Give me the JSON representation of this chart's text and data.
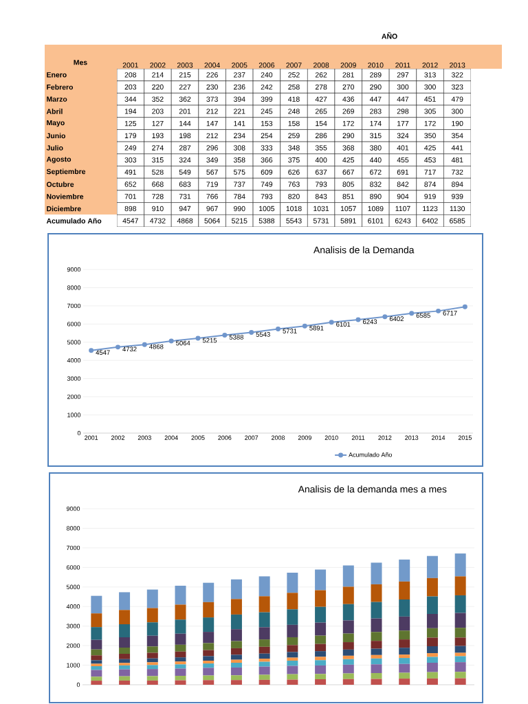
{
  "chart_data": [
    {
      "type": "heatmap",
      "title": "AÑO",
      "ylabel": "Mes",
      "data_labels": true,
      "categories": [
        "2001",
        "2002",
        "2003",
        "2004",
        "2005",
        "2006",
        "2007",
        "2008",
        "2009",
        "2010",
        "2011",
        "2012",
        "2013"
      ],
      "y_categories": [
        "Enero",
        "Febrero",
        "Marzo",
        "Abril",
        "Mayo",
        "Junio",
        "Julio",
        "Agosto",
        "Septiembre",
        "Octubre",
        "Noviembre",
        "Diciembre",
        "Acumulado Año"
      ],
      "cells": [
        [
          208,
          214,
          215,
          226,
          237,
          240,
          252,
          262,
          281,
          289,
          297,
          313,
          322
        ],
        [
          203,
          220,
          227,
          230,
          236,
          242,
          258,
          278,
          270,
          290,
          300,
          300,
          323
        ],
        [
          344,
          352,
          362,
          373,
          394,
          399,
          418,
          427,
          436,
          447,
          447,
          451,
          479
        ],
        [
          194,
          203,
          201,
          212,
          221,
          245,
          248,
          265,
          269,
          283,
          298,
          305,
          300
        ],
        [
          125,
          127,
          144,
          147,
          141,
          153,
          158,
          154,
          172,
          174,
          177,
          172,
          190
        ],
        [
          179,
          193,
          198,
          212,
          234,
          254,
          259,
          286,
          290,
          315,
          324,
          350,
          354
        ],
        [
          249,
          274,
          287,
          296,
          308,
          333,
          348,
          355,
          368,
          380,
          401,
          425,
          441
        ],
        [
          303,
          315,
          324,
          349,
          358,
          366,
          375,
          400,
          425,
          440,
          455,
          453,
          481
        ],
        [
          491,
          528,
          549,
          567,
          575,
          609,
          626,
          637,
          667,
          672,
          691,
          717,
          732
        ],
        [
          652,
          668,
          683,
          719,
          737,
          749,
          763,
          793,
          805,
          832,
          842,
          874,
          894
        ],
        [
          701,
          728,
          731,
          766,
          784,
          793,
          820,
          843,
          851,
          890,
          904,
          919,
          939
        ],
        [
          898,
          910,
          947,
          967,
          990,
          1005,
          1018,
          1031,
          1057,
          1089,
          1107,
          1123,
          1130
        ],
        [
          4547,
          4732,
          4868,
          5064,
          5215,
          5388,
          5543,
          5731,
          5891,
          6101,
          6243,
          6402,
          6585
        ]
      ]
    },
    {
      "type": "line",
      "title": "Analisis de la Demanda",
      "categories": [
        "2001",
        "2002",
        "2003",
        "2004",
        "2005",
        "2006",
        "2007",
        "2008",
        "2009",
        "2010",
        "2011",
        "2012",
        "2013",
        "2014",
        "2015"
      ],
      "series": [
        {
          "name": "Acumulado Año",
          "color": "#7096cc",
          "values": [
            4547,
            4732,
            4868,
            5064,
            5215,
            5388,
            5543,
            5731,
            5891,
            6101,
            6243,
            6402,
            6585,
            6717,
            6950
          ],
          "value_labels": [
            "4547",
            "4732",
            "4868",
            "5064",
            "5215",
            "5388",
            "5543",
            "5731",
            "5891",
            "6101",
            "6243",
            "6402",
            "6585",
            "6717",
            null
          ]
        }
      ],
      "ylim": [
        0,
        9000
      ],
      "yticks": [
        0,
        1000,
        2000,
        3000,
        4000,
        5000,
        6000,
        7000,
        8000,
        9000
      ],
      "grid": "y",
      "legend": "bottom",
      "marker": "circle",
      "line_style": "solid"
    },
    {
      "type": "bar",
      "title": "Analisis de la demanda mes a mes",
      "stacked": true,
      "categories": [
        null,
        null,
        null,
        null,
        null,
        null,
        null,
        null,
        null,
        null,
        null,
        null,
        null,
        null
      ],
      "series": [
        {
          "color": "#c0504d",
          "values": [
            208,
            214,
            215,
            226,
            237,
            240,
            252,
            262,
            281,
            289,
            297,
            313,
            322,
            330
          ]
        },
        {
          "color": "#9bbb59",
          "values": [
            203,
            220,
            227,
            230,
            236,
            242,
            258,
            278,
            270,
            290,
            300,
            300,
            323,
            330
          ]
        },
        {
          "color": "#8064a2",
          "values": [
            344,
            352,
            362,
            373,
            394,
            399,
            418,
            427,
            436,
            447,
            447,
            451,
            479,
            495
          ]
        },
        {
          "color": "#4bacc6",
          "values": [
            194,
            203,
            201,
            212,
            221,
            245,
            248,
            265,
            269,
            283,
            298,
            305,
            300,
            305
          ]
        },
        {
          "color": "#f79646",
          "values": [
            125,
            127,
            144,
            147,
            141,
            153,
            158,
            154,
            172,
            174,
            177,
            172,
            190,
            172
          ]
        },
        {
          "color": "#2c4d75",
          "values": [
            179,
            193,
            198,
            212,
            234,
            254,
            259,
            286,
            290,
            315,
            324,
            350,
            354,
            350
          ]
        },
        {
          "color": "#772c2a",
          "values": [
            249,
            274,
            287,
            296,
            308,
            333,
            348,
            355,
            368,
            380,
            401,
            425,
            441,
            430
          ]
        },
        {
          "color": "#5f7530",
          "values": [
            303,
            315,
            324,
            349,
            358,
            366,
            375,
            400,
            425,
            440,
            455,
            453,
            481,
            500
          ]
        },
        {
          "color": "#4d3b62",
          "values": [
            491,
            528,
            549,
            567,
            575,
            609,
            626,
            637,
            667,
            672,
            691,
            717,
            732,
            760
          ]
        },
        {
          "color": "#276a7c",
          "values": [
            652,
            668,
            683,
            719,
            737,
            749,
            763,
            793,
            805,
            832,
            842,
            874,
            894,
            900
          ]
        },
        {
          "color": "#b65708",
          "values": [
            701,
            728,
            731,
            766,
            784,
            793,
            820,
            843,
            851,
            890,
            904,
            919,
            939,
            970
          ]
        },
        {
          "color": "#729aca",
          "values": [
            898,
            910,
            947,
            967,
            990,
            1005,
            1018,
            1031,
            1057,
            1089,
            1107,
            1123,
            1130,
            1170
          ]
        }
      ],
      "ylim": [
        0,
        9000
      ],
      "yticks": [
        0,
        1000,
        2000,
        3000,
        4000,
        5000,
        6000,
        7000,
        8000,
        9000
      ],
      "grid": "y"
    }
  ]
}
